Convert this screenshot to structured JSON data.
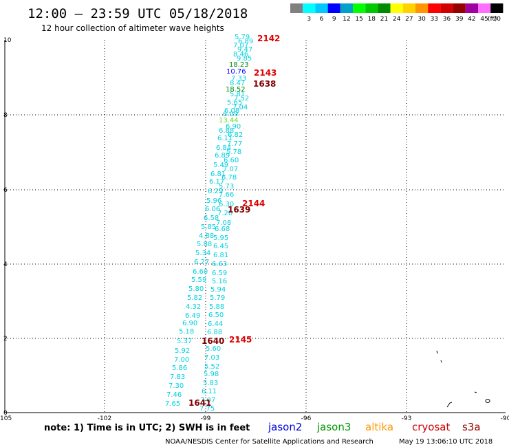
{
  "header": {
    "title": "12:00 – 23:59 UTC 05/18/2018",
    "subtitle": "12 hour collection of altimeter wave heights"
  },
  "legend": {
    "unit": "(ft)",
    "swatches": [
      {
        "label": "",
        "color": "#808080"
      },
      {
        "label": "3",
        "color": "#00ffff"
      },
      {
        "label": "6",
        "color": "#00c8ff"
      },
      {
        "label": "9",
        "color": "#0000ff"
      },
      {
        "label": "12",
        "color": "#00a0c8"
      },
      {
        "label": "15",
        "color": "#00ff00"
      },
      {
        "label": "18",
        "color": "#00c800"
      },
      {
        "label": "21",
        "color": "#008c00"
      },
      {
        "label": "24",
        "color": "#ffff00"
      },
      {
        "label": "27",
        "color": "#ffd200"
      },
      {
        "label": "30",
        "color": "#ff9600"
      },
      {
        "label": "33",
        "color": "#ff0000"
      },
      {
        "label": "36",
        "color": "#d20000"
      },
      {
        "label": "39",
        "color": "#960000"
      },
      {
        "label": "42",
        "color": "#a000a0"
      },
      {
        "label": "45",
        "color": "#ff6eff"
      },
      {
        "label": "70",
        "color": "#000000"
      }
    ]
  },
  "axes": {
    "x_ticks": [
      "-105",
      "-102",
      "-99",
      "-96",
      "-93",
      "-90"
    ],
    "y_ticks": [
      "0",
      "2",
      "4",
      "6",
      "8",
      "10"
    ]
  },
  "pass_labels": [
    {
      "text": "2142",
      "color": "#e00000"
    },
    {
      "text": "2143",
      "color": "#e00000"
    },
    {
      "text": "1638",
      "color": "#800000"
    },
    {
      "text": "2144",
      "color": "#e00000"
    },
    {
      "text": "1639",
      "color": "#800000"
    },
    {
      "text": "1640",
      "color": "#800000"
    },
    {
      "text": "2145",
      "color": "#e00000"
    },
    {
      "text": "1641",
      "color": "#800000"
    }
  ],
  "observations": [
    {
      "text": "5.79",
      "color": "#00d0e0"
    },
    {
      "text": "6.89",
      "color": "#00d0e0"
    },
    {
      "text": "7.07",
      "color": "#00d0e0"
    },
    {
      "text": "9.47",
      "color": "#00d0e0"
    },
    {
      "text": "8.46",
      "color": "#00d0e0"
    },
    {
      "text": "9.85",
      "color": "#00d0e0"
    },
    {
      "text": "18.23",
      "color": "#008800"
    },
    {
      "text": "10.76",
      "color": "#0000ff"
    },
    {
      "text": "7.33",
      "color": "#00d0e0"
    },
    {
      "text": "8.47",
      "color": "#00d0e0"
    },
    {
      "text": "18.52",
      "color": "#008800"
    },
    {
      "text": "5.81",
      "color": "#00d0e0"
    },
    {
      "text": "7.52",
      "color": "#00d0e0"
    },
    {
      "text": "5.65",
      "color": "#00d0e0"
    },
    {
      "text": "7.04",
      "color": "#00d0e0"
    },
    {
      "text": "6.08",
      "color": "#00d0e0"
    },
    {
      "text": "6.09",
      "color": "#00d0e0"
    },
    {
      "text": "13.44",
      "color": "#66dd22"
    },
    {
      "text": "6.90",
      "color": "#00d0e0"
    },
    {
      "text": "6.88",
      "color": "#00d0e0"
    },
    {
      "text": "6.82",
      "color": "#00d0e0"
    },
    {
      "text": "6.11",
      "color": "#00d0e0"
    },
    {
      "text": "7.77",
      "color": "#00d0e0"
    },
    {
      "text": "6.84",
      "color": "#00d0e0"
    },
    {
      "text": "5.78",
      "color": "#00d0e0"
    },
    {
      "text": "6.89",
      "color": "#00d0e0"
    },
    {
      "text": "6.60",
      "color": "#00d0e0"
    },
    {
      "text": "5.49",
      "color": "#00d0e0"
    },
    {
      "text": "7.07",
      "color": "#00d0e0"
    },
    {
      "text": "6.81",
      "color": "#00d0e0"
    },
    {
      "text": "6.78",
      "color": "#00d0e0"
    },
    {
      "text": "6.17",
      "color": "#00d0e0"
    },
    {
      "text": "5.73",
      "color": "#00d0e0"
    },
    {
      "text": "6.29",
      "color": "#00d0e0"
    },
    {
      "text": "7.66",
      "color": "#00d0e0"
    },
    {
      "text": "5.96",
      "color": "#00d0e0"
    },
    {
      "text": "6.30",
      "color": "#00d0e0"
    },
    {
      "text": "6.06",
      "color": "#00d0e0"
    },
    {
      "text": "7.20",
      "color": "#00d0e0"
    },
    {
      "text": "6.58",
      "color": "#00d0e0"
    },
    {
      "text": "7.08",
      "color": "#00d0e0"
    },
    {
      "text": "5.85",
      "color": "#00d0e0"
    },
    {
      "text": "6.68",
      "color": "#00d0e0"
    },
    {
      "text": "4.88",
      "color": "#00d0e0"
    },
    {
      "text": "5.95",
      "color": "#00d0e0"
    },
    {
      "text": "5.88",
      "color": "#00d0e0"
    },
    {
      "text": "6.45",
      "color": "#00d0e0"
    },
    {
      "text": "5.34",
      "color": "#00d0e0"
    },
    {
      "text": "6.81",
      "color": "#00d0e0"
    },
    {
      "text": "6.27",
      "color": "#00d0e0"
    },
    {
      "text": "6.63",
      "color": "#00d0e0"
    },
    {
      "text": "6.60",
      "color": "#00d0e0"
    },
    {
      "text": "6.59",
      "color": "#00d0e0"
    },
    {
      "text": "5.59",
      "color": "#00d0e0"
    },
    {
      "text": "5.16",
      "color": "#00d0e0"
    },
    {
      "text": "5.80",
      "color": "#00d0e0"
    },
    {
      "text": "5.94",
      "color": "#00d0e0"
    },
    {
      "text": "5.82",
      "color": "#00d0e0"
    },
    {
      "text": "5.79",
      "color": "#00d0e0"
    },
    {
      "text": "4.32",
      "color": "#00d0e0"
    },
    {
      "text": "5.88",
      "color": "#00d0e0"
    },
    {
      "text": "6.49",
      "color": "#00d0e0"
    },
    {
      "text": "6.50",
      "color": "#00d0e0"
    },
    {
      "text": "6.90",
      "color": "#00d0e0"
    },
    {
      "text": "6.44",
      "color": "#00d0e0"
    },
    {
      "text": "5.18",
      "color": "#00d0e0"
    },
    {
      "text": "6.88",
      "color": "#00d0e0"
    },
    {
      "text": "5.37",
      "color": "#00d0e0"
    },
    {
      "text": "5.60",
      "color": "#00d0e0"
    },
    {
      "text": "5.92",
      "color": "#00d0e0"
    },
    {
      "text": "7.03",
      "color": "#00d0e0"
    },
    {
      "text": "7.00",
      "color": "#00d0e0"
    },
    {
      "text": "5.52",
      "color": "#00d0e0"
    },
    {
      "text": "5.86",
      "color": "#00d0e0"
    },
    {
      "text": "5.98",
      "color": "#00d0e0"
    },
    {
      "text": "7.83",
      "color": "#00d0e0"
    },
    {
      "text": "5.83",
      "color": "#00d0e0"
    },
    {
      "text": "7.30",
      "color": "#00d0e0"
    },
    {
      "text": "6.11",
      "color": "#00d0e0"
    },
    {
      "text": "7.46",
      "color": "#00d0e0"
    },
    {
      "text": "7.07",
      "color": "#00d0e0"
    },
    {
      "text": "7.65",
      "color": "#00d0e0"
    },
    {
      "text": "7.75",
      "color": "#00d0e0"
    }
  ],
  "notes": {
    "note": "note: 1) Time is in UTC; 2) SWH is in feet",
    "missions": [
      {
        "name": "jason2",
        "color": "#0000dd"
      },
      {
        "name": "jason3",
        "color": "#009900"
      },
      {
        "name": "altika",
        "color": "#ff9900"
      },
      {
        "name": "cryosat",
        "color": "#cc0000"
      },
      {
        "name": "s3a",
        "color": "#990000"
      }
    ]
  },
  "footer": {
    "credit": "NOAA/NESDIS Center for Satellite Applications and Research",
    "timestamp": "May 19 13:06:10 UTC 2018"
  }
}
